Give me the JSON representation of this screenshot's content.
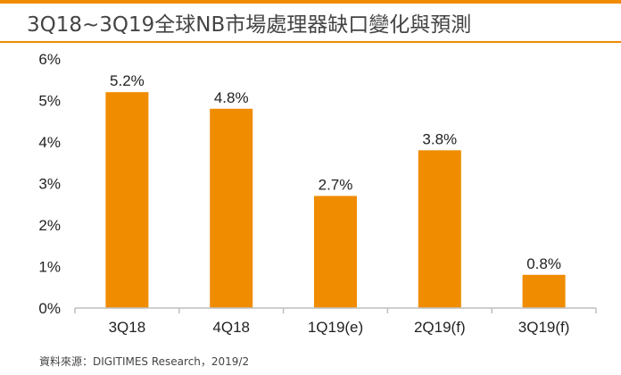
{
  "title": "3Q18~3Q19全球NB市場處理器缺口變化與預測",
  "source": "資料來源：DIGITIMES Research，2019/2",
  "colors": {
    "bar": "#f08c00",
    "accent": "#f08c00",
    "axis": "#bfbfbf",
    "text": "#222222"
  },
  "chart_data": {
    "type": "bar",
    "categories": [
      "3Q18",
      "4Q18",
      "1Q19(e)",
      "2Q19(f)",
      "3Q19(f)"
    ],
    "values": [
      5.2,
      4.8,
      2.7,
      3.8,
      0.8
    ],
    "data_labels": [
      "5.2%",
      "4.8%",
      "2.7%",
      "3.8%",
      "0.8%"
    ],
    "ylim": [
      0,
      6
    ],
    "yticks": [
      0,
      1,
      2,
      3,
      4,
      5,
      6
    ],
    "ytick_labels": [
      "0%",
      "1%",
      "2%",
      "3%",
      "4%",
      "5%",
      "6%"
    ],
    "xlabel": "",
    "ylabel": "",
    "grid": false,
    "legend": "none"
  }
}
